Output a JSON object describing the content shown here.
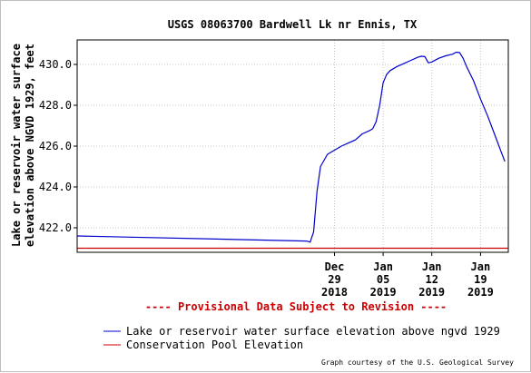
{
  "chart_data": {
    "type": "line",
    "title": "USGS 08063700 Bardwell Lk nr Ennis, TX",
    "ylabel_line1": "Lake or reservoir water surface",
    "ylabel_line2": "elevation above NGVD 1929, feet",
    "ylim": [
      420.8,
      431.2
    ],
    "y_ticks": [
      "430.0",
      "428.0",
      "426.0",
      "424.0",
      "422.0"
    ],
    "y_tick_values": [
      430,
      428,
      426,
      424,
      422
    ],
    "xlim": [
      "2018-11-22",
      "2019-01-23"
    ],
    "x_ticks": [
      {
        "date": "2018-12-29",
        "line1": "Dec",
        "line2": "29",
        "line3": "2018"
      },
      {
        "date": "2019-01-05",
        "line1": "Jan",
        "line2": "05",
        "line3": "2019"
      },
      {
        "date": "2019-01-12",
        "line1": "Jan",
        "line2": "12",
        "line3": "2019"
      },
      {
        "date": "2019-01-19",
        "line1": "Jan",
        "line2": "19",
        "line3": "2019"
      }
    ],
    "grid": true,
    "series": [
      {
        "name": "Lake or reservoir water surface elevation above ngvd 1929",
        "color": "#0000cc",
        "points": [
          [
            "2018-11-22",
            421.6
          ],
          [
            "2018-12-25",
            421.35
          ],
          [
            "2018-12-25 12:00",
            421.3
          ],
          [
            "2018-12-26",
            421.8
          ],
          [
            "2018-12-26 12:00",
            423.8
          ],
          [
            "2018-12-27",
            425.0
          ],
          [
            "2018-12-28",
            425.6
          ],
          [
            "2018-12-29",
            425.8
          ],
          [
            "2018-12-30",
            426.0
          ],
          [
            "2019-01-01",
            426.3
          ],
          [
            "2019-01-02",
            426.6
          ],
          [
            "2019-01-03",
            426.75
          ],
          [
            "2019-01-03 12:00",
            426.85
          ],
          [
            "2019-01-04",
            427.2
          ],
          [
            "2019-01-04 12:00",
            428.0
          ],
          [
            "2019-01-05",
            429.1
          ],
          [
            "2019-01-05 12:00",
            429.5
          ],
          [
            "2019-01-06",
            429.7
          ],
          [
            "2019-01-07",
            429.9
          ],
          [
            "2019-01-08",
            430.05
          ],
          [
            "2019-01-09",
            430.2
          ],
          [
            "2019-01-10",
            430.35
          ],
          [
            "2019-01-10 12:00",
            430.4
          ],
          [
            "2019-01-11",
            430.38
          ],
          [
            "2019-01-11 12:00",
            430.08
          ],
          [
            "2019-01-12",
            430.12
          ],
          [
            "2019-01-13",
            430.3
          ],
          [
            "2019-01-14",
            430.42
          ],
          [
            "2019-01-15",
            430.5
          ],
          [
            "2019-01-15 12:00",
            430.6
          ],
          [
            "2019-01-16",
            430.58
          ],
          [
            "2019-01-16 12:00",
            430.3
          ],
          [
            "2019-01-17",
            429.9
          ],
          [
            "2019-01-18",
            429.2
          ],
          [
            "2019-01-19",
            428.3
          ],
          [
            "2019-01-20",
            427.5
          ],
          [
            "2019-01-21",
            426.6
          ],
          [
            "2019-01-22",
            425.7
          ],
          [
            "2019-01-22 12:00",
            425.25
          ]
        ]
      },
      {
        "name": "Conservation Pool Elevation",
        "color": "#cc0000",
        "points": [
          [
            "2018-11-22",
            421.0
          ],
          [
            "2019-01-23",
            421.0
          ]
        ]
      }
    ],
    "annotation": "---- Provisional Data Subject to Revision ----",
    "legend_placement": "bottom",
    "credit": "Graph courtesy of the U.S. Geological Survey"
  }
}
